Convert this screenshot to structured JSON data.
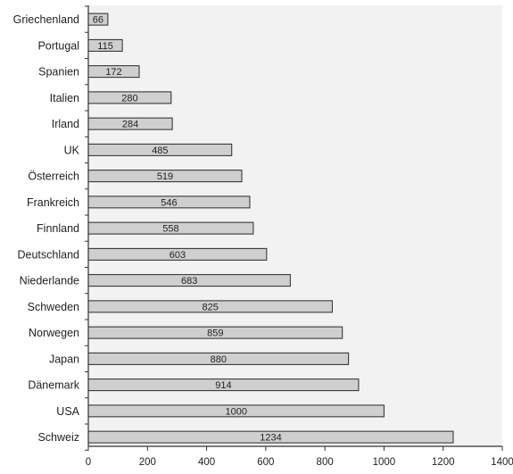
{
  "chart_data": {
    "type": "bar",
    "orientation": "horizontal",
    "title": "",
    "xlabel": "",
    "ylabel": "",
    "categories": [
      "Griechenland",
      "Portugal",
      "Spanien",
      "Italien",
      "Irland",
      "UK",
      "Österreich",
      "Frankreich",
      "Finnland",
      "Deutschland",
      "Niederlande",
      "Schweden",
      "Norwegen",
      "Japan",
      "Dänemark",
      "USA",
      "Schweiz"
    ],
    "values": [
      66,
      115,
      172,
      280,
      284,
      485,
      519,
      546,
      558,
      603,
      683,
      825,
      859,
      880,
      914,
      1000,
      1234
    ],
    "value_labels": [
      "66",
      "115",
      "172",
      "280",
      "284",
      "485",
      "519",
      "546",
      "558",
      "603",
      "683",
      "825",
      "859",
      "880",
      "914",
      "1000",
      "1234"
    ],
    "xlim": [
      0,
      1400
    ],
    "x_ticks": [
      0,
      200,
      400,
      600,
      800,
      1000,
      1200,
      1400
    ],
    "x_tick_labels": [
      "0",
      "200",
      "400",
      "600",
      "800",
      "1000",
      "1200",
      "1400"
    ],
    "grid": false,
    "legend": "none",
    "colors": {
      "bar_fill": "#cfcfcf",
      "bar_stroke": "#2a2a2a",
      "plot_background": "#f2f2f2",
      "axis": "#333333",
      "text": "#222222"
    }
  }
}
